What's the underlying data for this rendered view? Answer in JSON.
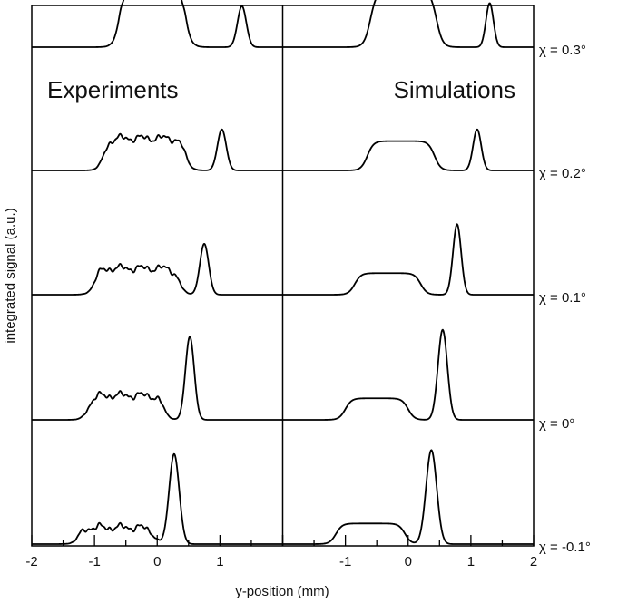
{
  "chart_data": {
    "type": "line",
    "xlabel": "y-position (mm)",
    "ylabel": "integrated signal (a.u.)",
    "x_ticks": [
      "-2",
      "-1",
      "0",
      "1",
      "-1",
      "0",
      "1",
      "2"
    ],
    "panels": [
      {
        "title": "Experiments",
        "xlim": [
          -2,
          2
        ]
      },
      {
        "title": "Simulations",
        "xlim": [
          -2,
          2
        ]
      }
    ],
    "rows": [
      {
        "label": "χ =  0.3°",
        "experiment": {
          "plateau": [
            -0.6,
            0.45
          ],
          "plateau_height": 0.62,
          "peak_x": 1.35,
          "peak_height": 0.42,
          "peak_width": 0.07,
          "noisy": true
        },
        "simulation": {
          "plateau": [
            -0.6,
            0.45
          ],
          "plateau_height": 0.58,
          "peak_x": 1.3,
          "peak_height": 0.45,
          "peak_width": 0.06,
          "noisy": false
        }
      },
      {
        "label": "χ =  0.2°",
        "experiment": {
          "plateau": [
            -0.85,
            0.45
          ],
          "plateau_height": 0.33,
          "peak_x": 1.03,
          "peak_height": 0.42,
          "peak_width": 0.07,
          "noisy": true
        },
        "simulation": {
          "plateau": [
            -0.65,
            0.42
          ],
          "plateau_height": 0.3,
          "peak_x": 1.1,
          "peak_height": 0.42,
          "peak_width": 0.065,
          "noisy": false
        }
      },
      {
        "label": "χ =  0.1°",
        "experiment": {
          "plateau": [
            -1.0,
            0.35
          ],
          "plateau_height": 0.27,
          "peak_x": 0.75,
          "peak_height": 0.52,
          "peak_width": 0.07,
          "noisy": true
        },
        "simulation": {
          "plateau": [
            -0.85,
            0.2
          ],
          "plateau_height": 0.22,
          "peak_x": 0.78,
          "peak_height": 0.72,
          "peak_width": 0.065,
          "noisy": false
        }
      },
      {
        "label": "χ =  0°",
        "experiment": {
          "plateau": [
            -1.1,
            0.1
          ],
          "plateau_height": 0.25,
          "peak_x": 0.52,
          "peak_height": 0.85,
          "peak_width": 0.07,
          "noisy": true
        },
        "simulation": {
          "plateau": [
            -1.0,
            0.0
          ],
          "plateau_height": 0.22,
          "peak_x": 0.55,
          "peak_height": 0.92,
          "peak_width": 0.075,
          "noisy": false
        }
      },
      {
        "label": "χ = -0.1°",
        "experiment": {
          "plateau": [
            -1.25,
            -0.05
          ],
          "plateau_height": 0.17,
          "peak_x": 0.27,
          "peak_height": 0.92,
          "peak_width": 0.08,
          "noisy": true
        },
        "simulation": {
          "plateau": [
            -1.15,
            -0.05
          ],
          "plateau_height": 0.21,
          "peak_x": 0.37,
          "peak_height": 0.96,
          "peak_width": 0.085,
          "noisy": false
        }
      }
    ]
  }
}
